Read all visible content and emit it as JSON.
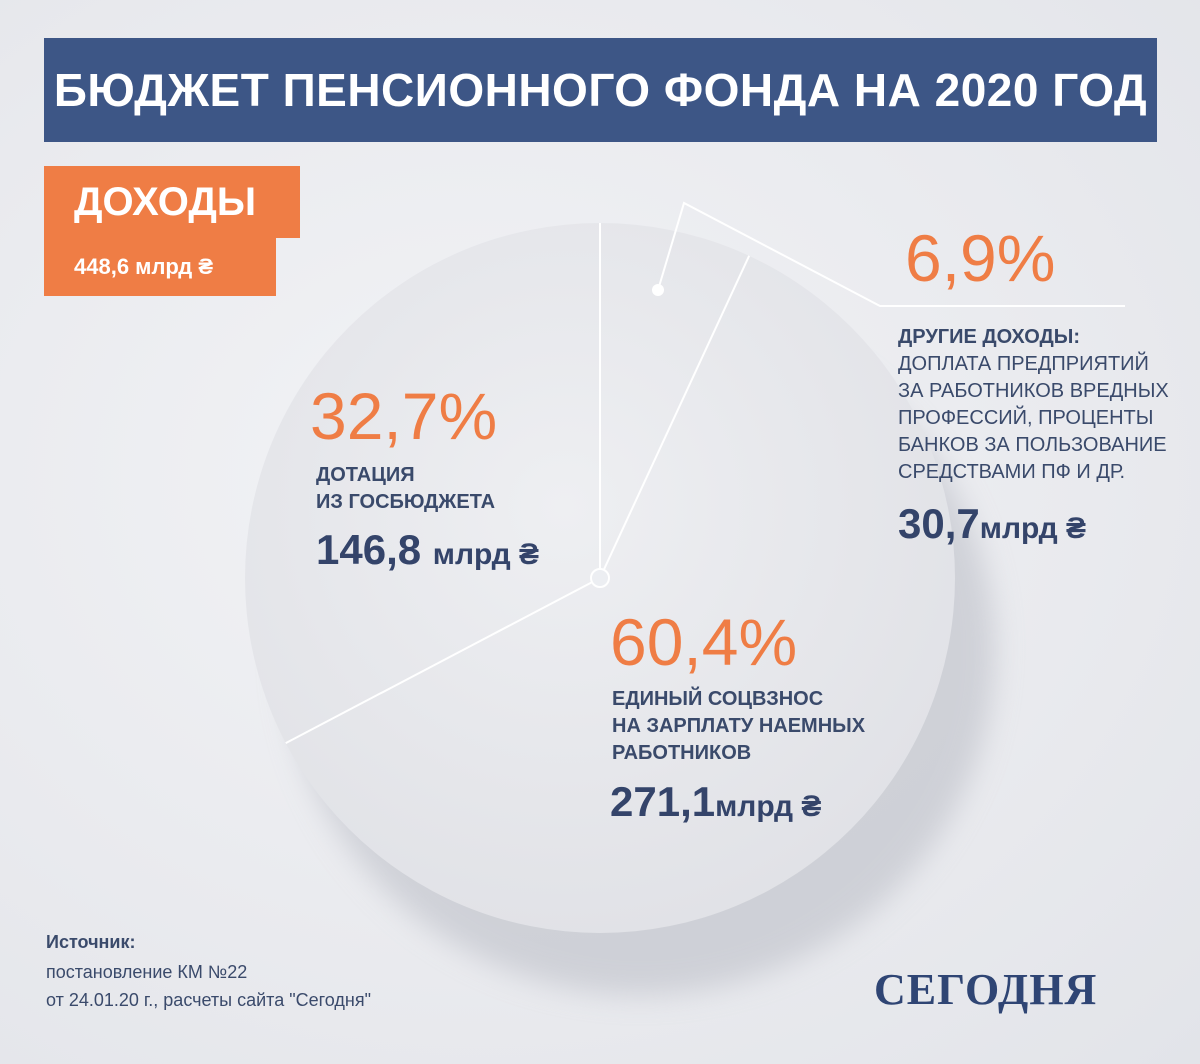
{
  "title": "БЮДЖЕТ ПЕНСИОННОГО ФОНДА НА 2020 ГОД",
  "income": {
    "label": "ДОХОДЫ",
    "total": "448,6 млрд ₴"
  },
  "colors": {
    "title_bg": "#3d5686",
    "accent": "#ef7d45",
    "text": "#34446a",
    "pie": "#e6e7eb"
  },
  "chart_data": {
    "type": "pie",
    "title": "",
    "slices": [
      {
        "percent_label": "32,7%",
        "value_percent": 32.7,
        "desc_line1": "ДОТАЦИЯ",
        "desc_line2": "ИЗ ГОСБЮДЖЕТА",
        "amount": "146,8",
        "unit": "млрд ₴"
      },
      {
        "percent_label": "60,4%",
        "value_percent": 60.4,
        "desc_line1": "ЕДИНЫЙ СОЦВЗНОС",
        "desc_line2": "НА ЗАРПЛАТУ НАЕМНЫХ",
        "desc_line3": "РАБОТНИКОВ",
        "amount": "271,1",
        "unit": "млрд ₴"
      },
      {
        "percent_label": "6,9%",
        "value_percent": 6.9,
        "desc_line1": "ДРУГИЕ ДОХОДЫ:",
        "desc_line2": "ДОПЛАТА ПРЕДПРИЯТИЙ",
        "desc_line3": "ЗА РАБОТНИКОВ ВРЕДНЫХ",
        "desc_line4": "ПРОФЕССИЙ, ПРОЦЕНТЫ",
        "desc_line5": "БАНКОВ ЗА ПОЛЬЗОВАНИЕ",
        "desc_line6": "СРЕДСТВАМИ ПФ И ДР.",
        "amount": "30,7",
        "unit": "млрд ₴"
      }
    ]
  },
  "source": {
    "title": "Источник:",
    "line1": "постановление КМ №22",
    "line2": "от 24.01.20 г., расчеты сайта \"Сегодня\""
  },
  "logo": "СЕГОДНЯ"
}
